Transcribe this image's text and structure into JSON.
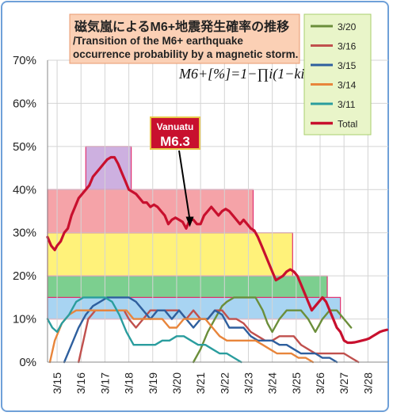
{
  "chart_data": {
    "type": "line",
    "title": "磁気嵐によるM6+地震発生確率の推移",
    "subtitle": "/Transition of the M6+ earthquake occurrence probability by a magnetic storm.",
    "formula": "M6+[%]=1−∏i(1−ki)",
    "xlabel": "",
    "ylabel": "",
    "ylim": [
      0,
      70
    ],
    "yticks": [
      "0%",
      "10%",
      "20%",
      "30%",
      "40%",
      "50%",
      "60%",
      "70%"
    ],
    "xlim": [
      14.6,
      28.85
    ],
    "xticks": [
      "3/15",
      "3/16",
      "3/17",
      "3/18",
      "3/19",
      "3/20",
      "3/21",
      "3/22",
      "3/23",
      "3/24",
      "3/25",
      "3/26",
      "3/27",
      "3/28"
    ],
    "grid": true,
    "legend_position": "top-right",
    "annotation": {
      "place": "Vanuatu",
      "magnitude": "M6.3",
      "x": 20.55,
      "y": 31.5
    },
    "bands": [
      {
        "x0": 14.6,
        "x1": 26.85,
        "y0": 10,
        "y1": 15,
        "color": "#a8d4f2",
        "border": "#e03070"
      },
      {
        "x0": 14.6,
        "x1": 26.3,
        "y0": 15,
        "y1": 20,
        "color": "#7ccf8f",
        "border": "#e03070"
      },
      {
        "x0": 14.6,
        "x1": 24.85,
        "y0": 20,
        "y1": 30,
        "color": "#fff27a",
        "border": "#e03070"
      },
      {
        "x0": 14.6,
        "x1": 23.2,
        "y0": 30,
        "y1": 40,
        "color": "#f5a3a8",
        "border": "#e03070"
      },
      {
        "x0": 16.2,
        "x1": 18.1,
        "y0": 40,
        "y1": 50,
        "color": "#cdb0e0",
        "border": "#e03070"
      }
    ],
    "series": [
      {
        "name": "3/20",
        "color": "#6b8e3a",
        "x": [
          20.7,
          21.0,
          21.3,
          21.6,
          21.9,
          22.1,
          22.4,
          22.7,
          23.0,
          23.3,
          23.6,
          23.8,
          24.0,
          24.3,
          24.6,
          24.9,
          25.2,
          25.5,
          25.8,
          26.1,
          26.4,
          26.7,
          27.0,
          27.3
        ],
        "y": [
          0,
          3,
          7,
          10,
          13,
          14,
          15,
          15,
          15,
          15,
          12,
          9,
          7,
          10,
          12,
          12,
          12,
          10,
          7,
          10,
          12,
          12,
          10,
          8
        ]
      },
      {
        "name": "3/16",
        "color": "#c0504d",
        "x": [
          15.9,
          16.1,
          16.3,
          16.6,
          16.9,
          17.2,
          17.5,
          17.8,
          18.0,
          18.3,
          18.6,
          18.9,
          19.2,
          19.5,
          19.8,
          20.1,
          20.4,
          20.7,
          21.0,
          21.3,
          21.6,
          21.9,
          22.2,
          22.5,
          22.8,
          23.1,
          23.4,
          23.7,
          24.0,
          24.3,
          24.6,
          24.9,
          25.2,
          25.5,
          25.8,
          26.1,
          26.4,
          26.7,
          27.0,
          27.3,
          27.6
        ],
        "y": [
          0,
          5,
          10,
          12,
          12,
          12,
          12,
          12,
          10,
          8,
          10,
          12,
          12,
          12,
          12,
          12,
          10,
          12,
          10,
          10,
          12,
          12,
          10,
          10,
          9,
          7,
          6,
          5,
          5,
          6,
          6,
          6,
          4,
          3,
          2,
          2,
          2,
          2,
          2,
          1,
          0
        ]
      },
      {
        "name": "3/15",
        "color": "#2e5f9e",
        "x": [
          15.3,
          15.6,
          15.9,
          16.2,
          16.5,
          16.8,
          17.1,
          17.4,
          17.7,
          18.0,
          18.3,
          18.6,
          18.9,
          19.2,
          19.5,
          19.8,
          20.1,
          20.4,
          20.7,
          21.0,
          21.3,
          21.6,
          21.9,
          22.2,
          22.5,
          22.8,
          23.1,
          23.4,
          23.7,
          24.0,
          24.3,
          24.6,
          24.9,
          25.2,
          25.5,
          25.8,
          26.1,
          26.4,
          26.7
        ],
        "y": [
          0,
          4,
          8,
          11,
          13,
          14,
          15,
          15,
          15,
          15,
          14,
          12,
          10,
          12,
          12,
          10,
          12,
          10,
          8,
          10,
          10,
          12,
          11,
          8,
          8,
          8,
          6,
          5,
          5,
          5,
          4,
          4,
          3,
          2,
          2,
          2,
          1,
          1,
          0
        ]
      },
      {
        "name": "3/14",
        "color": "#e8853b",
        "x": [
          14.7,
          14.9,
          15.2,
          15.5,
          15.8,
          16.1,
          16.4,
          16.7,
          17.0,
          17.3,
          17.6,
          17.9,
          18.2,
          18.5,
          18.8,
          19.1,
          19.4,
          19.7,
          20.0,
          20.3,
          20.6,
          20.9,
          21.2,
          21.5,
          21.8,
          22.1,
          22.4,
          22.7,
          23.0,
          23.3,
          23.6,
          23.9,
          24.2,
          24.5,
          24.8,
          25.1,
          25.4,
          25.7
        ],
        "y": [
          0,
          5,
          9,
          11,
          12,
          12,
          12,
          12,
          12,
          12,
          12,
          12,
          10,
          10,
          10,
          10,
          10,
          8,
          8,
          10,
          10,
          10,
          10,
          8,
          6,
          5,
          5,
          5,
          5,
          5,
          4,
          3,
          2,
          2,
          2,
          1,
          1,
          0
        ]
      },
      {
        "name": "3/11",
        "color": "#2a9d9e",
        "x": [
          14.6,
          14.8,
          15.0,
          15.2,
          15.5,
          15.8,
          16.1,
          16.4,
          16.7,
          17.0,
          17.3,
          17.6,
          17.9,
          18.2,
          18.5,
          18.8,
          19.1,
          19.4,
          19.7,
          20.0,
          20.3,
          20.6,
          20.9,
          21.2,
          21.5,
          21.8,
          22.1,
          22.4,
          22.7
        ],
        "y": [
          10,
          8,
          7,
          9,
          11,
          14,
          15,
          15,
          15,
          15,
          14,
          11,
          7,
          4,
          4,
          4,
          4,
          5,
          5,
          6,
          6,
          5,
          4,
          4,
          3,
          2,
          2,
          1,
          0
        ]
      },
      {
        "name": "Total",
        "color": "#c8102e",
        "x": [
          14.6,
          14.75,
          14.9,
          15.0,
          15.15,
          15.3,
          15.45,
          15.6,
          15.75,
          15.9,
          16.05,
          16.2,
          16.35,
          16.5,
          16.65,
          16.8,
          16.95,
          17.1,
          17.25,
          17.4,
          17.55,
          17.7,
          17.85,
          18.0,
          18.15,
          18.3,
          18.45,
          18.6,
          18.75,
          18.9,
          19.05,
          19.2,
          19.35,
          19.5,
          19.65,
          19.8,
          19.95,
          20.1,
          20.25,
          20.4,
          20.55,
          20.7,
          20.85,
          21.0,
          21.15,
          21.3,
          21.45,
          21.6,
          21.75,
          21.9,
          22.05,
          22.2,
          22.35,
          22.5,
          22.65,
          22.8,
          22.95,
          23.1,
          23.25,
          23.4,
          23.55,
          23.7,
          23.85,
          24.0,
          24.15,
          24.3,
          24.45,
          24.6,
          24.75,
          24.9,
          25.05,
          25.2,
          25.35,
          25.5,
          25.65,
          25.8,
          25.95,
          26.1,
          26.25,
          26.4,
          26.55,
          26.7,
          26.85,
          27.0,
          27.15,
          27.3,
          27.45,
          27.6,
          27.75,
          27.9,
          28.05,
          28.2,
          28.35,
          28.5,
          28.65,
          28.8
        ],
        "y": [
          29,
          27,
          26,
          27,
          28,
          30,
          31,
          34,
          36,
          38,
          39,
          40,
          41,
          43,
          44,
          45,
          46,
          47,
          47.5,
          47.5,
          46,
          44,
          42,
          40,
          39.5,
          39,
          38,
          37,
          37,
          36,
          36.5,
          36,
          35,
          34,
          32,
          33,
          33.5,
          33,
          32.5,
          31,
          33,
          33,
          32,
          32,
          34,
          35,
          36,
          35,
          34,
          35,
          35.5,
          35,
          34,
          33,
          32,
          33,
          32,
          31,
          30.5,
          29,
          27,
          25,
          23,
          21,
          19,
          19.5,
          20,
          21,
          21.5,
          21,
          20,
          18,
          16,
          14,
          12,
          13,
          14,
          15,
          14,
          12,
          10,
          8,
          7,
          5,
          4.5,
          4.5,
          4.6,
          4.8,
          5,
          5.2,
          5.5,
          6,
          6.5,
          7,
          7.3,
          7.5
        ]
      }
    ]
  }
}
